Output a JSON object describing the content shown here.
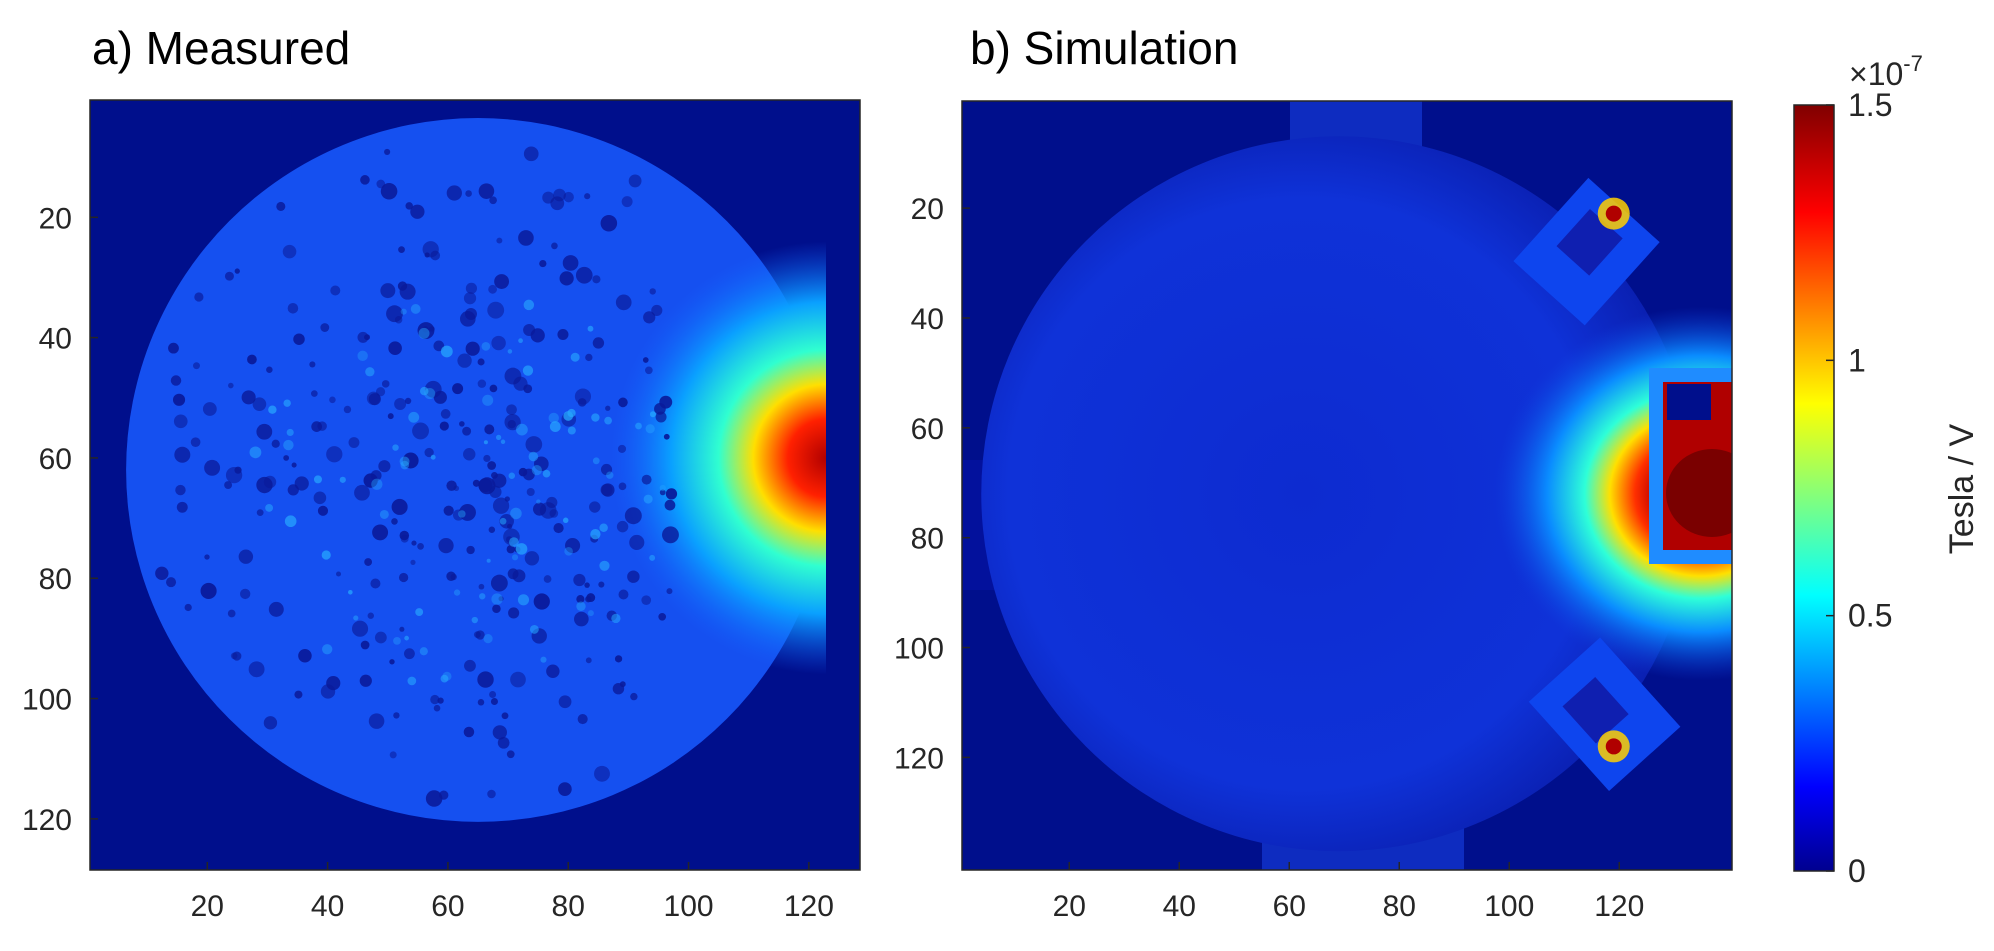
{
  "figure": {
    "background": "#ffffff"
  },
  "chart_data": [
    {
      "type": "heatmap",
      "title": "a) Measured",
      "xlabel": "",
      "ylabel": "",
      "xticks": [
        20,
        40,
        60,
        80,
        100,
        120
      ],
      "xtick_labels": [
        "20",
        "40",
        "60",
        "80",
        "100",
        "120"
      ],
      "yticks": [
        20,
        40,
        60,
        80,
        100,
        120
      ],
      "ytick_labels": [
        "20",
        "40",
        "60",
        "80",
        "100",
        "120"
      ],
      "xlim": [
        0.5,
        128.5
      ],
      "ylim": [
        0.5,
        128.5
      ],
      "y_direction": "reversed",
      "grid": false,
      "background_value": 0.0,
      "disc": {
        "center_x": 65,
        "center_y": 62,
        "radius": 58.5,
        "fill_value": 0.23
      },
      "dark_speckle_value": 0.05,
      "hotspot": {
        "x": 123,
        "y": 60,
        "peak_value": 1.5
      }
    },
    {
      "type": "heatmap",
      "title": "b) Simulation",
      "xlabel": "",
      "ylabel": "",
      "xticks": [
        20,
        40,
        60,
        80,
        100,
        120
      ],
      "xtick_labels": [
        "20",
        "40",
        "60",
        "80",
        "100",
        "120"
      ],
      "yticks": [
        20,
        40,
        60,
        80,
        100,
        120
      ],
      "ytick_labels": [
        "20",
        "40",
        "60",
        "80",
        "100",
        "120"
      ],
      "xlim": [
        0.5,
        140.5
      ],
      "ylim": [
        0.5,
        140.5
      ],
      "y_direction": "reversed",
      "grid": false,
      "background_value": 0.0,
      "disc": {
        "center_x": 69,
        "center_y": 72,
        "radius": 65,
        "fill_value": 0.12
      },
      "coil_hotspot": {
        "x": 135,
        "y": 72,
        "peak_value": 1.5
      },
      "point_sources": [
        {
          "x": 119,
          "y": 21
        },
        {
          "x": 119,
          "y": 118
        }
      ]
    }
  ],
  "colorbar": {
    "colormap": "jet",
    "range": [
      0,
      1.5
    ],
    "ticks": [
      0,
      0.5,
      1,
      1.5
    ],
    "tick_labels": [
      "0",
      "0.5",
      "1",
      "1.5"
    ],
    "multiplier": "×10",
    "exponent": "-7",
    "label": "Tesla / V"
  }
}
